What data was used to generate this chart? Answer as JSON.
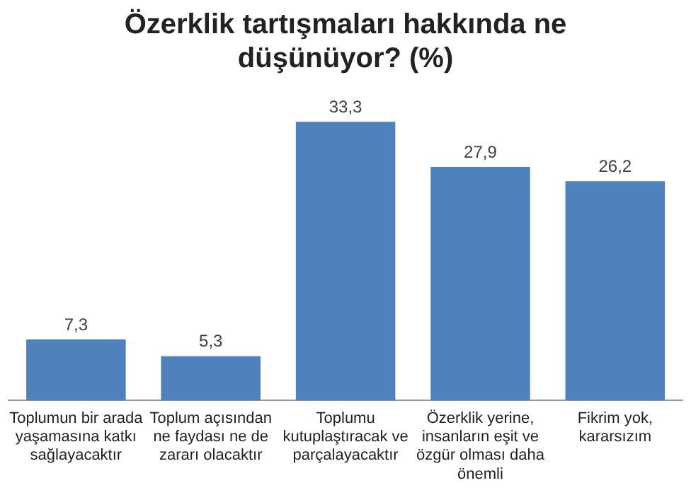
{
  "chart_data": {
    "type": "bar",
    "title": "Özerklik tartışmaları hakkında ne düşünüyor? (%)",
    "categories": [
      "Toplumun bir arada yaşamasına katkı sağlayacaktır",
      "Toplum açısından ne faydası ne de zararı olacaktır",
      "Toplumu kutuplaştıracak ve parçalayacaktır",
      "Özerklik yerine, insanların eşit ve özgür olması daha önemli",
      "Fikrim yok, kararsızım"
    ],
    "values": [
      7.3,
      5.3,
      33.3,
      27.9,
      26.2
    ],
    "value_labels": [
      "7,3",
      "5,3",
      "33,3",
      "27,9",
      "26,2"
    ],
    "color": "#4f81bd",
    "grid": false,
    "legend": false
  }
}
